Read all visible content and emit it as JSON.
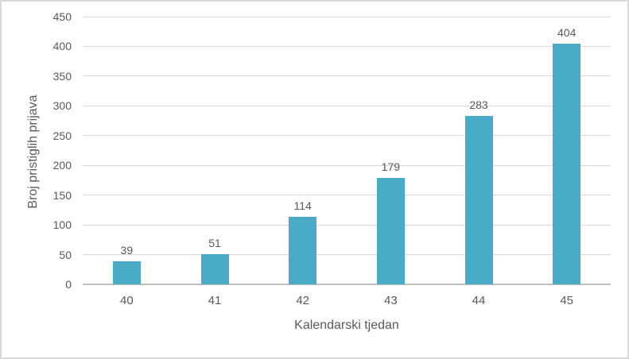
{
  "chart_data": {
    "type": "bar",
    "categories": [
      "40",
      "41",
      "42",
      "43",
      "44",
      "45"
    ],
    "values": [
      39,
      51,
      114,
      179,
      283,
      404
    ],
    "title": "",
    "xlabel": "Kalendarski tjedan",
    "ylabel": "Broj pristiglih prijava",
    "ylim": [
      0,
      450
    ],
    "yticks": [
      0,
      50,
      100,
      150,
      200,
      250,
      300,
      350,
      400,
      450
    ],
    "grid": true,
    "legend": "none",
    "data_labels_shown": true
  },
  "colors": {
    "bar": "#4aabc7",
    "gridline": "#d9d9d9",
    "axis_line": "#bfbfbf",
    "text": "#595959",
    "border": "#d9d9d9",
    "background": "#ffffff"
  }
}
